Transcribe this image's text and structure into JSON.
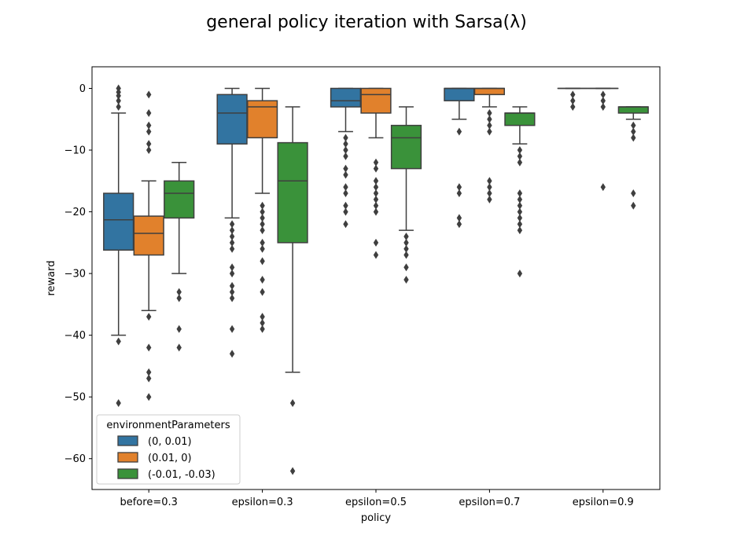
{
  "chart_data": {
    "type": "box",
    "title": "general policy iteration with Sarsa(λ)",
    "xlabel": "policy",
    "ylabel": "reward",
    "ylim": [
      -65,
      3.5
    ],
    "yticks": [
      0,
      -10,
      -20,
      -30,
      -40,
      -50,
      -60
    ],
    "ytick_labels": [
      "0",
      "−10",
      "−20",
      "−30",
      "−40",
      "−50",
      "−60"
    ],
    "categories": [
      "before=0.3",
      "epsilon=0.3",
      "epsilon=0.5",
      "epsilon=0.7",
      "epsilon=0.9"
    ],
    "legend": {
      "title": "environmentParameters",
      "placement": "lower-left"
    },
    "series": [
      {
        "name": "(0, 0.01)",
        "color": "#3274a1",
        "boxes": [
          {
            "q1": -26.2,
            "median": -21.3,
            "q3": -17,
            "whislo": -40,
            "whishi": -4,
            "fliers": [
              -41,
              -51,
              0,
              -0.6,
              -1.2,
              -2,
              -3
            ]
          },
          {
            "q1": -9,
            "median": -4,
            "q3": -1,
            "whislo": -21,
            "whishi": 0,
            "fliers": [
              -22,
              -23,
              -24,
              -25,
              -26,
              -29,
              -30,
              -32,
              -33,
              -34,
              -39,
              -43
            ]
          },
          {
            "q1": -3,
            "median": -2,
            "q3": 0,
            "whislo": -7,
            "whishi": 0,
            "fliers": [
              -8,
              -9,
              -10,
              -11,
              -13,
              -14,
              -16,
              -17,
              -19,
              -20,
              -22
            ]
          },
          {
            "q1": -2,
            "median": 0,
            "q3": 0,
            "whislo": -5,
            "whishi": 0,
            "fliers": [
              -7,
              -16,
              -17,
              -21,
              -22
            ]
          },
          {
            "q1": 0,
            "median": 0,
            "q3": 0,
            "whislo": 0,
            "whishi": 0,
            "fliers": [
              -1,
              -2,
              -3
            ]
          }
        ]
      },
      {
        "name": "(0.01, 0)",
        "color": "#e1812c",
        "boxes": [
          {
            "q1": -27,
            "median": -23.5,
            "q3": -20.7,
            "whislo": -36,
            "whishi": -15,
            "fliers": [
              -1,
              -4,
              -6,
              -7,
              -9,
              -10,
              -37,
              -42,
              -46,
              -47,
              -50
            ]
          },
          {
            "q1": -8,
            "median": -3,
            "q3": -2,
            "whislo": -17,
            "whishi": 0,
            "fliers": [
              -19,
              -20,
              -21,
              -22,
              -23,
              -25,
              -26,
              -28,
              -31,
              -33,
              -37,
              -38,
              -39
            ]
          },
          {
            "q1": -4,
            "median": -1,
            "q3": 0,
            "whislo": -8,
            "whishi": 0,
            "fliers": [
              -12,
              -13,
              -15,
              -16,
              -17,
              -18,
              -19,
              -20,
              -25,
              -27
            ]
          },
          {
            "q1": -1,
            "median": 0,
            "q3": 0,
            "whislo": -3,
            "whishi": 0,
            "fliers": [
              -4,
              -5,
              -6,
              -7,
              -15,
              -16,
              -17,
              -18
            ]
          },
          {
            "q1": 0,
            "median": 0,
            "q3": 0,
            "whislo": 0,
            "whishi": 0,
            "fliers": [
              -1,
              -2,
              -3,
              -16
            ]
          }
        ]
      },
      {
        "name": "(-0.01, -0.03)",
        "color": "#3a923a",
        "boxes": [
          {
            "q1": -21,
            "median": -17,
            "q3": -15,
            "whislo": -30,
            "whishi": -12,
            "fliers": [
              -33,
              -34,
              -39,
              -42
            ]
          },
          {
            "q1": -25,
            "median": -15,
            "q3": -8.8,
            "whislo": -46,
            "whishi": -3,
            "fliers": [
              -51,
              -62
            ]
          },
          {
            "q1": -13,
            "median": -8,
            "q3": -6,
            "whislo": -23,
            "whishi": -3,
            "fliers": [
              -24,
              -25,
              -26,
              -27,
              -29,
              -31
            ]
          },
          {
            "q1": -6,
            "median": -4,
            "q3": -4,
            "whislo": -9,
            "whishi": -3,
            "fliers": [
              -10,
              -11,
              -12,
              -17,
              -18,
              -19,
              -20,
              -21,
              -22,
              -23,
              -30
            ]
          },
          {
            "q1": -4,
            "median": -3,
            "q3": -3,
            "whislo": -5,
            "whishi": -3,
            "fliers": [
              -6,
              -7,
              -8,
              -17,
              -19
            ]
          }
        ]
      }
    ]
  }
}
